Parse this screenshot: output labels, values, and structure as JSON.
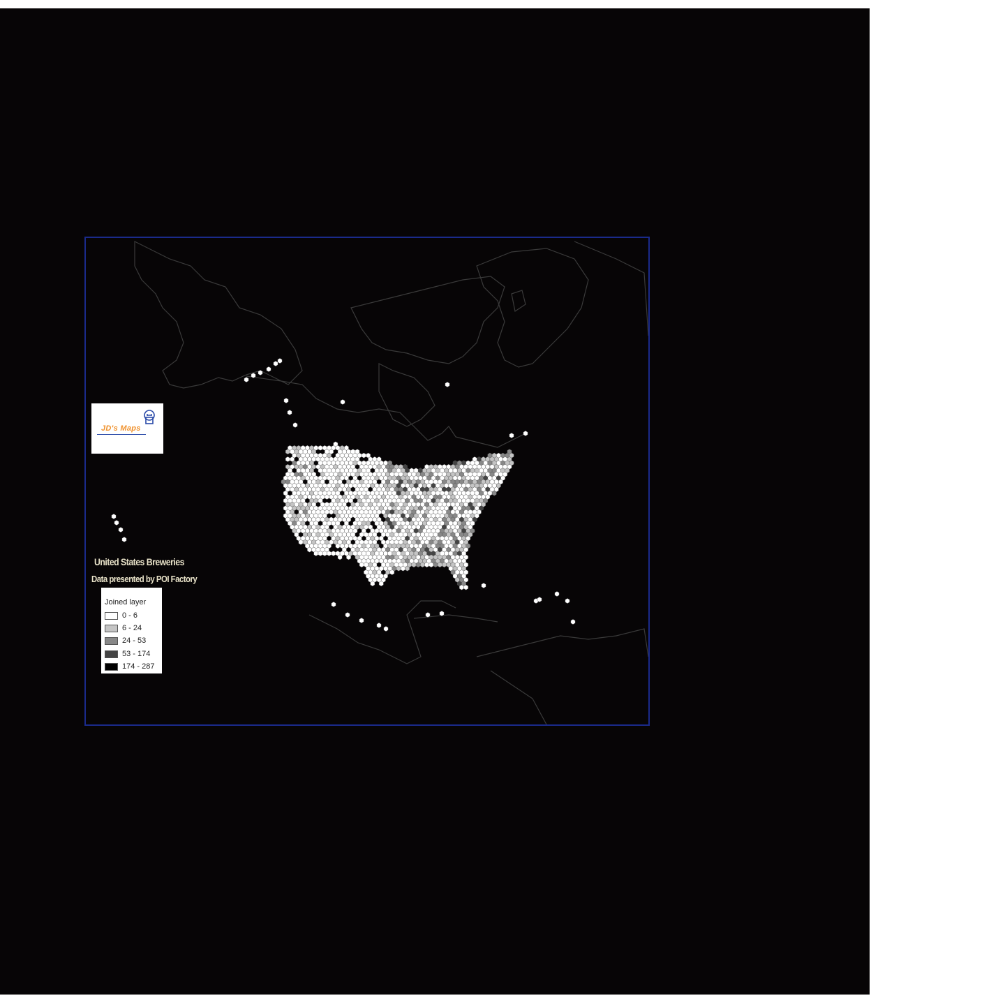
{
  "map": {
    "title": "United States Breweries",
    "subtitle": "Data presented by POI Factory",
    "logo_text": "JD's Maps",
    "logo_icon": "map-icon",
    "frame_color": "#1a2a8a",
    "background_color": "#070506",
    "coastline_color": "#3a3a3a"
  },
  "legend": {
    "title": "Joined layer",
    "classes": [
      {
        "label": "0 - 6",
        "color": "#ffffff"
      },
      {
        "label": "6 - 24",
        "color": "#c4c4c4"
      },
      {
        "label": "24 - 53",
        "color": "#888888"
      },
      {
        "label": "53 - 174",
        "color": "#444444"
      },
      {
        "label": "174 - 287",
        "color": "#000000"
      }
    ]
  }
}
